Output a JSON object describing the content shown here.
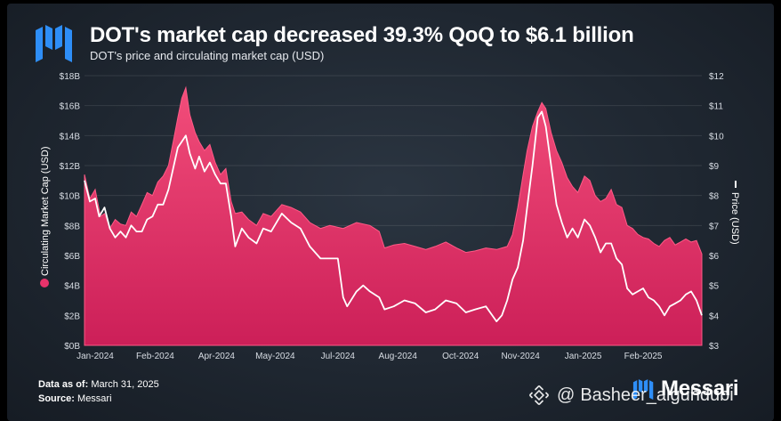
{
  "header": {
    "title": "DOT's market cap decreased 39.3% QoQ to $6.1 billion",
    "subtitle": "DOT's price and circulating market cap (USD)"
  },
  "footer": {
    "data_as_of_label": "Data as of:",
    "data_as_of_value": "March 31, 2025",
    "source_label": "Source:",
    "source_value": "Messari"
  },
  "brand": {
    "name": "Messari",
    "logo_icon": "messari-logo-icon"
  },
  "watermark": {
    "at": "@",
    "handle": "Basheer_alguhdubi",
    "icon": "binance-diamond-icon"
  },
  "colors": {
    "market_cap_fill": "#d6245f",
    "market_cap_light": "#f24d7a",
    "price_line": "#ffffff",
    "background": "#1f2731",
    "logo_blue": "#2e8ef7"
  },
  "chart_data": {
    "type": "area",
    "x_ticks": [
      "Jan-2024",
      "Feb-2024",
      "Apr-2024",
      "May-2024",
      "Jul-2024",
      "Aug-2024",
      "Oct-2024",
      "Nov-2024",
      "Jan-2025",
      "Feb-2025"
    ],
    "x_tick_dates": [
      "2024-01-01",
      "2024-02-15",
      "2024-04-01",
      "2024-05-15",
      "2024-07-01",
      "2024-08-15",
      "2024-10-01",
      "2024-11-15",
      "2025-01-01",
      "2025-02-15"
    ],
    "x_range": [
      "2023-12-24",
      "2025-03-31"
    ],
    "y_left": {
      "label": "Circulating Market Cap (USD)",
      "min": 0,
      "max": 18,
      "ticks": [
        "$0B",
        "$2B",
        "$4B",
        "$6B",
        "$8B",
        "$10B",
        "$12B",
        "$14B",
        "$16B",
        "$18B"
      ]
    },
    "y_right": {
      "label": "Price (USD)",
      "min": 3,
      "max": 12,
      "ticks": [
        "$3",
        "$4",
        "$5",
        "$6",
        "$7",
        "$8",
        "$9",
        "$10",
        "$11",
        "$12"
      ]
    },
    "grid": true,
    "series": [
      {
        "name": "Circulating Market Cap (USD)",
        "kind": "area",
        "axis": "left",
        "points": [
          [
            "2023-12-24",
            11.4
          ],
          [
            "2023-12-28",
            9.8
          ],
          [
            "2024-01-01",
            10.4
          ],
          [
            "2024-01-05",
            8.6
          ],
          [
            "2024-01-08",
            8.8
          ],
          [
            "2024-01-12",
            7.8
          ],
          [
            "2024-01-16",
            8.4
          ],
          [
            "2024-01-20",
            8.1
          ],
          [
            "2024-01-24",
            8.0
          ],
          [
            "2024-01-28",
            8.9
          ],
          [
            "2024-02-01",
            8.6
          ],
          [
            "2024-02-05",
            9.4
          ],
          [
            "2024-02-09",
            10.2
          ],
          [
            "2024-02-13",
            10.0
          ],
          [
            "2024-02-17",
            10.9
          ],
          [
            "2024-02-21",
            11.3
          ],
          [
            "2024-02-25",
            12.0
          ],
          [
            "2024-02-29",
            13.8
          ],
          [
            "2024-03-03",
            15.2
          ],
          [
            "2024-03-06",
            16.5
          ],
          [
            "2024-03-09",
            17.2
          ],
          [
            "2024-03-12",
            15.4
          ],
          [
            "2024-03-16",
            14.2
          ],
          [
            "2024-03-19",
            13.6
          ],
          [
            "2024-03-23",
            13.0
          ],
          [
            "2024-03-27",
            13.4
          ],
          [
            "2024-03-31",
            12.2
          ],
          [
            "2024-04-04",
            11.4
          ],
          [
            "2024-04-08",
            11.8
          ],
          [
            "2024-04-12",
            9.6
          ],
          [
            "2024-04-15",
            8.8
          ],
          [
            "2024-04-20",
            8.9
          ],
          [
            "2024-04-25",
            8.4
          ],
          [
            "2024-05-01",
            8.0
          ],
          [
            "2024-05-06",
            8.8
          ],
          [
            "2024-05-12",
            8.6
          ],
          [
            "2024-05-20",
            9.4
          ],
          [
            "2024-05-27",
            9.2
          ],
          [
            "2024-06-03",
            8.9
          ],
          [
            "2024-06-10",
            8.2
          ],
          [
            "2024-06-18",
            7.8
          ],
          [
            "2024-06-25",
            8.0
          ],
          [
            "2024-07-05",
            7.8
          ],
          [
            "2024-07-15",
            8.2
          ],
          [
            "2024-07-25",
            8.0
          ],
          [
            "2024-08-01",
            7.6
          ],
          [
            "2024-08-05",
            6.5
          ],
          [
            "2024-08-12",
            6.7
          ],
          [
            "2024-08-20",
            6.8
          ],
          [
            "2024-08-28",
            6.6
          ],
          [
            "2024-09-05",
            6.4
          ],
          [
            "2024-09-12",
            6.6
          ],
          [
            "2024-09-20",
            6.9
          ],
          [
            "2024-09-28",
            6.5
          ],
          [
            "2024-10-05",
            6.2
          ],
          [
            "2024-10-12",
            6.3
          ],
          [
            "2024-10-20",
            6.5
          ],
          [
            "2024-10-28",
            6.4
          ],
          [
            "2024-11-01",
            6.5
          ],
          [
            "2024-11-05",
            6.6
          ],
          [
            "2024-11-09",
            7.4
          ],
          [
            "2024-11-13",
            9.2
          ],
          [
            "2024-11-17",
            11.4
          ],
          [
            "2024-11-20",
            13.0
          ],
          [
            "2024-11-24",
            14.6
          ],
          [
            "2024-11-28",
            15.6
          ],
          [
            "2024-12-01",
            16.2
          ],
          [
            "2024-12-04",
            15.8
          ],
          [
            "2024-12-08",
            14.2
          ],
          [
            "2024-12-12",
            13.0
          ],
          [
            "2024-12-16",
            12.2
          ],
          [
            "2024-12-20",
            11.2
          ],
          [
            "2024-12-24",
            10.6
          ],
          [
            "2024-12-28",
            10.2
          ],
          [
            "2025-01-02",
            11.3
          ],
          [
            "2025-01-06",
            11.0
          ],
          [
            "2025-01-10",
            10.0
          ],
          [
            "2025-01-14",
            9.6
          ],
          [
            "2025-01-18",
            9.8
          ],
          [
            "2025-01-22",
            10.4
          ],
          [
            "2025-01-26",
            9.4
          ],
          [
            "2025-01-30",
            9.2
          ],
          [
            "2025-02-03",
            8.0
          ],
          [
            "2025-02-07",
            7.8
          ],
          [
            "2025-02-11",
            7.4
          ],
          [
            "2025-02-15",
            7.2
          ],
          [
            "2025-02-19",
            7.1
          ],
          [
            "2025-02-23",
            6.8
          ],
          [
            "2025-02-27",
            6.6
          ],
          [
            "2025-03-03",
            7.0
          ],
          [
            "2025-03-07",
            7.2
          ],
          [
            "2025-03-11",
            6.7
          ],
          [
            "2025-03-15",
            6.9
          ],
          [
            "2025-03-19",
            7.1
          ],
          [
            "2025-03-23",
            6.9
          ],
          [
            "2025-03-27",
            7.0
          ],
          [
            "2025-03-31",
            6.1
          ]
        ]
      },
      {
        "name": "Price (USD)",
        "kind": "line",
        "axis": "right",
        "points": [
          [
            "2023-12-24",
            8.5
          ],
          [
            "2023-12-28",
            7.8
          ],
          [
            "2024-01-01",
            7.9
          ],
          [
            "2024-01-04",
            7.3
          ],
          [
            "2024-01-08",
            7.6
          ],
          [
            "2024-01-12",
            6.9
          ],
          [
            "2024-01-16",
            6.6
          ],
          [
            "2024-01-20",
            6.8
          ],
          [
            "2024-01-24",
            6.6
          ],
          [
            "2024-01-28",
            7.0
          ],
          [
            "2024-02-01",
            6.8
          ],
          [
            "2024-02-05",
            6.8
          ],
          [
            "2024-02-09",
            7.2
          ],
          [
            "2024-02-13",
            7.3
          ],
          [
            "2024-02-17",
            7.7
          ],
          [
            "2024-02-21",
            7.7
          ],
          [
            "2024-02-25",
            8.2
          ],
          [
            "2024-02-29",
            9.0
          ],
          [
            "2024-03-03",
            9.6
          ],
          [
            "2024-03-06",
            9.8
          ],
          [
            "2024-03-09",
            10.0
          ],
          [
            "2024-03-12",
            9.4
          ],
          [
            "2024-03-16",
            8.9
          ],
          [
            "2024-03-19",
            9.3
          ],
          [
            "2024-03-23",
            8.8
          ],
          [
            "2024-03-27",
            9.1
          ],
          [
            "2024-03-31",
            8.7
          ],
          [
            "2024-04-04",
            8.4
          ],
          [
            "2024-04-08",
            8.4
          ],
          [
            "2024-04-12",
            7.3
          ],
          [
            "2024-04-15",
            6.3
          ],
          [
            "2024-04-20",
            6.9
          ],
          [
            "2024-04-25",
            6.6
          ],
          [
            "2024-05-01",
            6.4
          ],
          [
            "2024-05-06",
            6.9
          ],
          [
            "2024-05-12",
            6.8
          ],
          [
            "2024-05-20",
            7.4
          ],
          [
            "2024-05-27",
            7.1
          ],
          [
            "2024-06-03",
            6.9
          ],
          [
            "2024-06-10",
            6.3
          ],
          [
            "2024-06-18",
            5.9
          ],
          [
            "2024-06-25",
            5.9
          ],
          [
            "2024-07-01",
            5.9
          ],
          [
            "2024-07-05",
            4.6
          ],
          [
            "2024-07-08",
            4.3
          ],
          [
            "2024-07-15",
            4.8
          ],
          [
            "2024-07-20",
            5.0
          ],
          [
            "2024-07-25",
            4.8
          ],
          [
            "2024-08-01",
            4.6
          ],
          [
            "2024-08-05",
            4.2
          ],
          [
            "2024-08-12",
            4.3
          ],
          [
            "2024-08-20",
            4.5
          ],
          [
            "2024-08-28",
            4.4
          ],
          [
            "2024-09-05",
            4.1
          ],
          [
            "2024-09-12",
            4.2
          ],
          [
            "2024-09-20",
            4.5
          ],
          [
            "2024-09-28",
            4.4
          ],
          [
            "2024-10-05",
            4.1
          ],
          [
            "2024-10-12",
            4.2
          ],
          [
            "2024-10-20",
            4.3
          ],
          [
            "2024-10-28",
            3.8
          ],
          [
            "2024-11-01",
            4.0
          ],
          [
            "2024-11-05",
            4.5
          ],
          [
            "2024-11-09",
            5.2
          ],
          [
            "2024-11-13",
            5.6
          ],
          [
            "2024-11-17",
            6.5
          ],
          [
            "2024-11-20",
            7.6
          ],
          [
            "2024-11-24",
            9.0
          ],
          [
            "2024-11-28",
            10.6
          ],
          [
            "2024-12-01",
            10.8
          ],
          [
            "2024-12-04",
            10.3
          ],
          [
            "2024-12-08",
            9.0
          ],
          [
            "2024-12-12",
            7.7
          ],
          [
            "2024-12-16",
            7.1
          ],
          [
            "2024-12-20",
            6.6
          ],
          [
            "2024-12-24",
            6.9
          ],
          [
            "2024-12-28",
            6.6
          ],
          [
            "2025-01-02",
            7.2
          ],
          [
            "2025-01-06",
            7.0
          ],
          [
            "2025-01-10",
            6.6
          ],
          [
            "2025-01-14",
            6.1
          ],
          [
            "2025-01-18",
            6.4
          ],
          [
            "2025-01-22",
            6.4
          ],
          [
            "2025-01-26",
            5.9
          ],
          [
            "2025-01-30",
            5.7
          ],
          [
            "2025-02-03",
            4.9
          ],
          [
            "2025-02-07",
            4.7
          ],
          [
            "2025-02-11",
            4.8
          ],
          [
            "2025-02-15",
            4.9
          ],
          [
            "2025-02-19",
            4.6
          ],
          [
            "2025-02-23",
            4.5
          ],
          [
            "2025-02-27",
            4.3
          ],
          [
            "2025-03-03",
            4.0
          ],
          [
            "2025-03-07",
            4.3
          ],
          [
            "2025-03-11",
            4.4
          ],
          [
            "2025-03-15",
            4.5
          ],
          [
            "2025-03-19",
            4.7
          ],
          [
            "2025-03-23",
            4.8
          ],
          [
            "2025-03-27",
            4.5
          ],
          [
            "2025-03-31",
            4.0
          ]
        ]
      }
    ]
  }
}
